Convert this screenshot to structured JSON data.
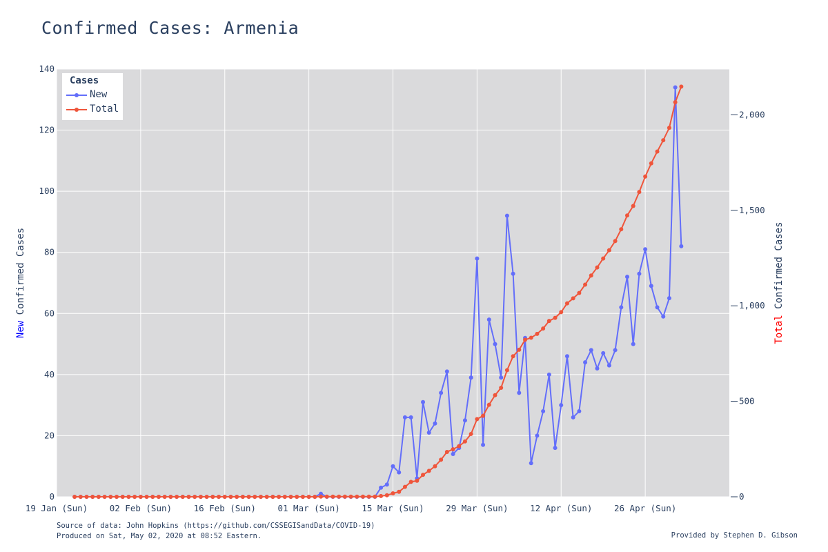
{
  "page": {
    "title": "Confirmed Cases: Armenia",
    "footer_line1": "Source of data: John Hopkins (https://github.com/CSSEGISandData/COVID-19)",
    "footer_line2": "Produced on Sat, May 02, 2020 at 08:52 Eastern.",
    "credit": "Provided by Stephen D. Gibson"
  },
  "legend": {
    "title": "Cases",
    "items": [
      {
        "label": "New",
        "color": "#636efa"
      },
      {
        "label": "Total",
        "color": "#ef553b"
      }
    ]
  },
  "axes": {
    "y_left_title_prefix": "New",
    "y_left_title_rest": " Confirmed Cases",
    "y_left_prefix_color": "#0000ff",
    "y_right_title_prefix": "Total",
    "y_right_title_rest": " Confirmed Cases",
    "y_right_prefix_color": "#ff0000"
  },
  "chart_data": {
    "type": "line",
    "x_start": "2020-01-22",
    "x_end": "2020-05-01",
    "xlim": [
      "2020-01-19",
      "2020-05-10"
    ],
    "x_tick_labels": [
      "19 Jan (Sun)",
      "02 Feb (Sun)",
      "16 Feb (Sun)",
      "01 Mar (Sun)",
      "15 Mar (Sun)",
      "29 Mar (Sun)",
      "12 Apr (Sun)",
      "26 Apr (Sun)"
    ],
    "y_left": {
      "lim": [
        0,
        140
      ],
      "ticks": [
        0,
        20,
        40,
        60,
        80,
        100,
        120,
        140
      ]
    },
    "y_right": {
      "lim": [
        0,
        2240
      ],
      "ticks": [
        0,
        500,
        1000,
        1500,
        2000
      ],
      "tick_labels": [
        "0",
        "500",
        "1,000",
        "1,500",
        "2,000"
      ]
    },
    "grid": true,
    "legend_position": "top-left",
    "plot_background": "#dadadc",
    "series": [
      {
        "name": "New",
        "axis": "left",
        "color": "#636efa",
        "values": [
          0,
          0,
          0,
          0,
          0,
          0,
          0,
          0,
          0,
          0,
          0,
          0,
          0,
          0,
          0,
          0,
          0,
          0,
          0,
          0,
          0,
          0,
          0,
          0,
          0,
          0,
          0,
          0,
          0,
          0,
          0,
          0,
          0,
          0,
          0,
          0,
          0,
          0,
          0,
          0,
          0,
          1,
          0,
          0,
          0,
          0,
          0,
          0,
          0,
          0,
          0,
          3,
          4,
          10,
          8,
          26,
          26,
          6,
          31,
          21,
          24,
          34,
          41,
          14,
          16,
          25,
          39,
          78,
          17,
          58,
          50,
          39,
          92,
          73,
          34,
          52,
          11,
          20,
          28,
          40,
          16,
          30,
          46,
          26,
          28,
          44,
          48,
          42,
          47,
          43,
          48,
          62,
          72,
          50,
          73,
          81,
          69,
          62,
          59,
          65,
          134,
          82
        ]
      },
      {
        "name": "Total",
        "axis": "right",
        "color": "#ef553b",
        "values": [
          0,
          0,
          0,
          0,
          0,
          0,
          0,
          0,
          0,
          0,
          0,
          0,
          0,
          0,
          0,
          0,
          0,
          0,
          0,
          0,
          0,
          0,
          0,
          0,
          0,
          0,
          0,
          0,
          0,
          0,
          0,
          0,
          0,
          0,
          0,
          0,
          0,
          0,
          0,
          0,
          0,
          1,
          1,
          1,
          1,
          1,
          1,
          1,
          1,
          1,
          1,
          4,
          8,
          18,
          26,
          52,
          78,
          84,
          115,
          136,
          160,
          194,
          235,
          249,
          265,
          290,
          329,
          407,
          424,
          482,
          532,
          571,
          663,
          736,
          770,
          822,
          833,
          853,
          881,
          921,
          937,
          967,
          1013,
          1039,
          1067,
          1111,
          1159,
          1201,
          1248,
          1291,
          1339,
          1401,
          1473,
          1523,
          1596,
          1677,
          1746,
          1808,
          1867,
          1932,
          2066,
          2148
        ]
      }
    ]
  }
}
